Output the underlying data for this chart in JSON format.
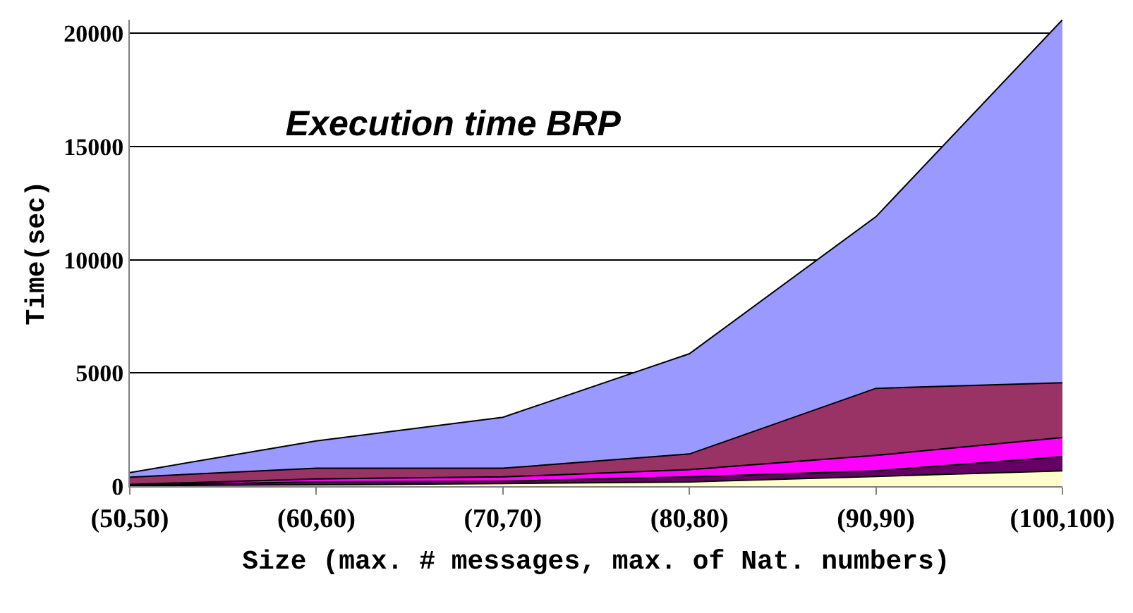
{
  "chart_data": {
    "type": "area",
    "title": "Execution time BRP",
    "xlabel": "Size (max. # messages, max. of Nat. numbers)",
    "ylabel": "Time(sec)",
    "categories": [
      "(50,50)",
      "(60,60)",
      "(70,70)",
      "(80,80)",
      "(90,90)",
      "(100,100)"
    ],
    "stacked": true,
    "series": [
      {
        "color": "#ffffcc",
        "values": [
          20,
          60,
          120,
          190,
          430,
          680
        ]
      },
      {
        "color": "#660066",
        "values": [
          30,
          130,
          100,
          220,
          250,
          620
        ]
      },
      {
        "color": "#ff00ff",
        "values": [
          30,
          130,
          190,
          320,
          680,
          850
        ]
      },
      {
        "color": "#993366",
        "values": [
          320,
          470,
          380,
          690,
          2960,
          2420
        ]
      },
      {
        "color": "#9999ff",
        "values": [
          200,
          1210,
          2250,
          4430,
          7580,
          16030
        ]
      }
    ],
    "ylim": [
      0,
      20600
    ],
    "yticks": [
      0,
      5000,
      10000,
      15000,
      20000
    ],
    "grid": "y"
  }
}
